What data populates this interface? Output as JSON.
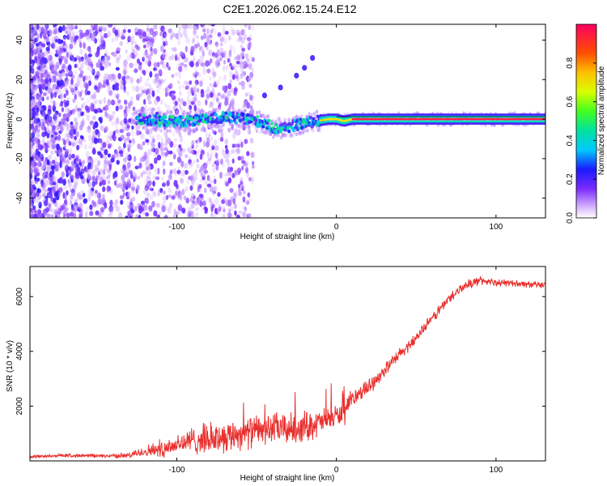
{
  "title": "C2E1.2026.062.15.24.E12",
  "chart_data": [
    {
      "type": "heatmap",
      "title": "C2E1.2026.062.15.24.E12",
      "xlabel": "Height of straight line (km)",
      "ylabel": "Frequency (Hz)",
      "xlim": [
        -192,
        131
      ],
      "ylim": [
        -50,
        48
      ],
      "xticks": [
        -100,
        0,
        100
      ],
      "xtick_labels": [
        "-100",
        "0",
        "100"
      ],
      "yticks": [
        -40,
        -20,
        0,
        20,
        40
      ],
      "ytick_labels": [
        "-40",
        "-20",
        "0",
        "20",
        "40"
      ],
      "main_trace": {
        "description_points_x": [
          -125,
          -110,
          -90,
          -70,
          -55,
          -45,
          -38,
          -30,
          -20,
          -12,
          -5,
          0,
          5,
          10,
          30,
          60,
          90,
          130
        ],
        "description_points_y": [
          0,
          -1,
          -1,
          1,
          0,
          -2,
          -5,
          -4,
          -2,
          -1,
          0,
          0,
          -1,
          0,
          0,
          0,
          0,
          0
        ]
      },
      "secondary_trace": {
        "x": [
          -45,
          -35,
          -25,
          -20,
          -15
        ],
        "y": [
          12,
          16,
          22,
          26,
          31
        ]
      },
      "colorbar": {
        "label": "Normalized spectral amplitude",
        "range": [
          0,
          1
        ],
        "ticks": [
          0.0,
          0.2,
          0.4,
          0.6,
          0.8
        ],
        "tick_labels": [
          "0.0",
          "0.2",
          "0.4",
          "0.6",
          "0.8"
        ]
      }
    },
    {
      "type": "line",
      "xlabel": "Height of straight line (km)",
      "ylabel": "SNR (10 * v/v)",
      "xlim": [
        -192,
        131
      ],
      "ylim": [
        0,
        7100
      ],
      "xticks": [
        -100,
        0,
        100
      ],
      "xtick_labels": [
        "-100",
        "0",
        "100"
      ],
      "yticks": [
        2000,
        4000,
        6000
      ],
      "ytick_labels": [
        "2000",
        "4000",
        "6000"
      ],
      "series": [
        {
          "name": "SNR",
          "color": "#e8302e",
          "x": [
            -192,
            -170,
            -150,
            -130,
            -120,
            -110,
            -100,
            -90,
            -80,
            -70,
            -60,
            -50,
            -40,
            -30,
            -20,
            -10,
            0,
            5,
            10,
            20,
            30,
            40,
            50,
            60,
            70,
            80,
            90,
            100,
            110,
            120,
            131
          ],
          "y": [
            150,
            200,
            180,
            200,
            350,
            450,
            600,
            750,
            800,
            900,
            1000,
            1100,
            1200,
            1150,
            1250,
            1400,
            1650,
            1700,
            2300,
            2700,
            3300,
            3900,
            4500,
            5200,
            5900,
            6400,
            6600,
            6500,
            6500,
            6450,
            6400
          ],
          "noise_amplitude": [
            60,
            80,
            80,
            120,
            250,
            400,
            500,
            600,
            700,
            700,
            700,
            700,
            700,
            700,
            700,
            600,
            500,
            500,
            400,
            350,
            300,
            300,
            250,
            250,
            250,
            200,
            200,
            150,
            150,
            150,
            150
          ]
        }
      ]
    }
  ],
  "colors": {
    "line": "#e8302e",
    "main_trace_core": "#ff2040",
    "axis": "#000000"
  }
}
